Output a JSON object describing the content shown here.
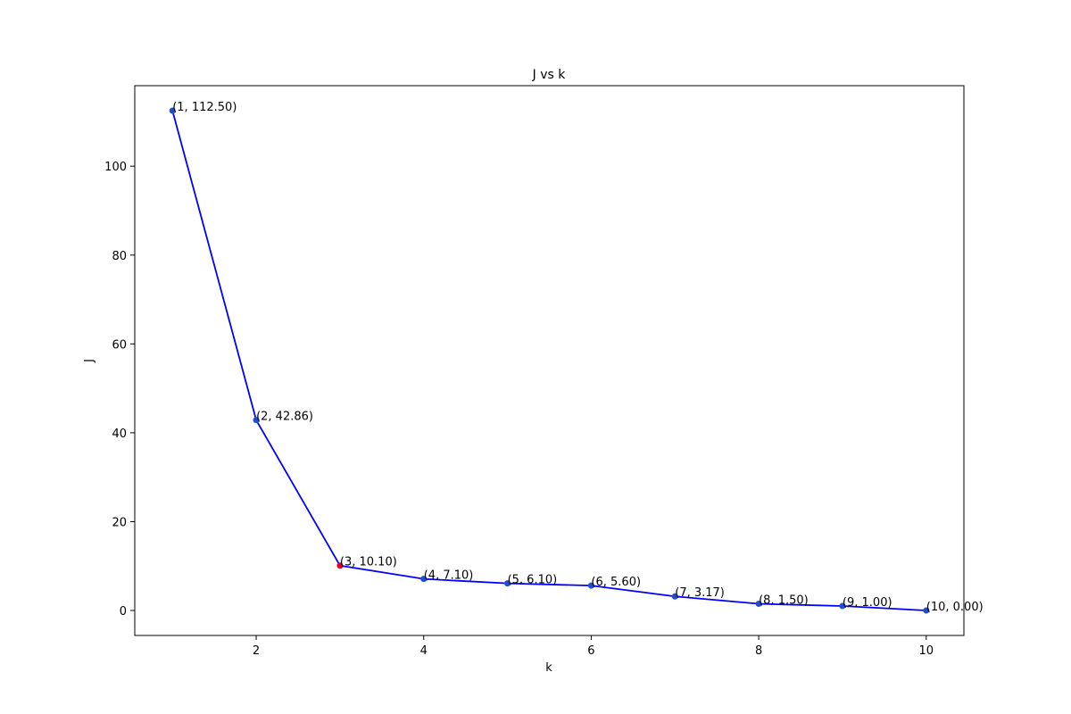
{
  "chart_data": {
    "type": "line",
    "title": "J vs k",
    "x_label": "k",
    "y_label": "J",
    "x": [
      1,
      2,
      3,
      4,
      5,
      6,
      7,
      8,
      9,
      10
    ],
    "series": [
      {
        "color": "#0000ff",
        "values": [
          112.5,
          42.86,
          10.1,
          7.1,
          6.1,
          5.6,
          3.17,
          1.5,
          1.0,
          0.0
        ],
        "value_labels": [
          "(1, 112.50)",
          "(2, 42.86)",
          "(3, 10.10)",
          "(4, 7.10)",
          "(5, 6.10)",
          "(6, 5.60)",
          "(7, 3.17)",
          "(8, 1.50)",
          "(9, 1.00)",
          "(10, 0.00)"
        ],
        "marker_colors": [
          "#1f4fcc",
          "#1f4fcc",
          "#e8001c",
          "#1f4fcc",
          "#1f4fcc",
          "#1f4fcc",
          "#1f4fcc",
          "#1f4fcc",
          "#1f4fcc",
          "#1f4fcc"
        ]
      }
    ],
    "xlim": [
      0.55,
      10.45
    ],
    "ylim": [
      -5.625,
      118.125
    ],
    "xticks": [
      2,
      4,
      6,
      8,
      10
    ],
    "yticks": [
      0,
      20,
      40,
      60,
      80,
      100
    ],
    "grid": false
  }
}
